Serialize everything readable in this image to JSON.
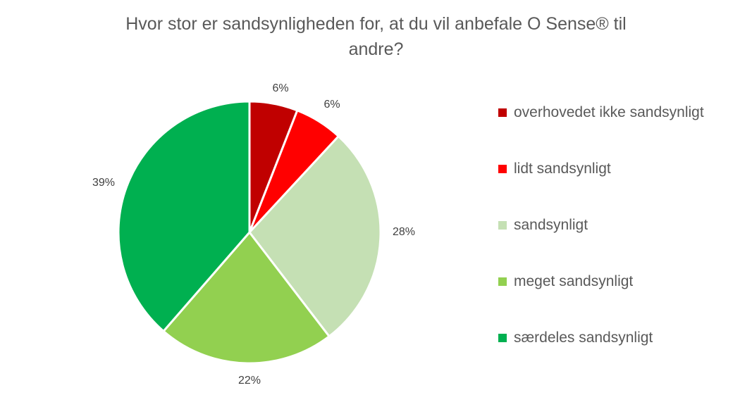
{
  "chart_data": {
    "type": "pie",
    "title": "Hvor stor er sandsynligheden for, at du vil anbefale O Sense® til andre?",
    "title_lines": [
      "Hvor stor er sandsynligheden for, at du vil anbefale O Sense® til",
      "andre?"
    ],
    "categories": [
      "overhovedet ikke sandsynligt",
      "lidt sandsynligt",
      "sandsynligt",
      "meget sandsynligt",
      "særdeles sandsynligt"
    ],
    "values": [
      6,
      6,
      28,
      22,
      39
    ],
    "data_labels": [
      "6%",
      "6%",
      "28%",
      "22%",
      "39%"
    ],
    "colors": [
      "#C00000",
      "#FF0000",
      "#C5E0B4",
      "#92D050",
      "#00B050"
    ],
    "legend_position": "right",
    "start_angle": "top, clockwise"
  }
}
